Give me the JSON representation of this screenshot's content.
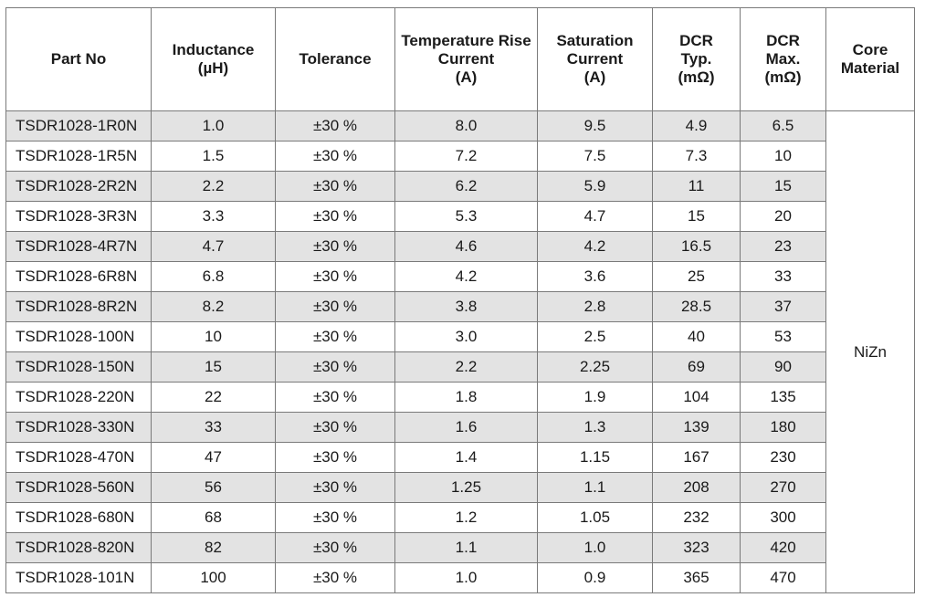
{
  "table": {
    "headers": [
      {
        "key": "part_no",
        "lines": [
          "Part No"
        ]
      },
      {
        "key": "inductance",
        "lines": [
          "Inductance",
          "(µH)"
        ]
      },
      {
        "key": "tolerance",
        "lines": [
          "Tolerance"
        ]
      },
      {
        "key": "temp_rise_current",
        "lines": [
          "Temperature Rise",
          "Current",
          "(A)"
        ]
      },
      {
        "key": "saturation_current",
        "lines": [
          "Saturation",
          "Current",
          "(A)"
        ]
      },
      {
        "key": "dcr_typ",
        "lines": [
          "DCR",
          "Typ.",
          "(mΩ)"
        ]
      },
      {
        "key": "dcr_max",
        "lines": [
          "DCR",
          "Max.",
          "(mΩ)"
        ]
      },
      {
        "key": "core_material",
        "lines": [
          "Core",
          "Material"
        ]
      }
    ],
    "core_material_value": "NiZn",
    "rows": [
      {
        "part_no": "TSDR1028-1R0N",
        "inductance": "1.0",
        "tolerance": "±30 %",
        "temp_rise_current": "8.0",
        "saturation_current": "9.5",
        "dcr_typ": "4.9",
        "dcr_max": "6.5"
      },
      {
        "part_no": "TSDR1028-1R5N",
        "inductance": "1.5",
        "tolerance": "±30 %",
        "temp_rise_current": "7.2",
        "saturation_current": "7.5",
        "dcr_typ": "7.3",
        "dcr_max": "10"
      },
      {
        "part_no": "TSDR1028-2R2N",
        "inductance": "2.2",
        "tolerance": "±30 %",
        "temp_rise_current": "6.2",
        "saturation_current": "5.9",
        "dcr_typ": "11",
        "dcr_max": "15"
      },
      {
        "part_no": "TSDR1028-3R3N",
        "inductance": "3.3",
        "tolerance": "±30 %",
        "temp_rise_current": "5.3",
        "saturation_current": "4.7",
        "dcr_typ": "15",
        "dcr_max": "20"
      },
      {
        "part_no": "TSDR1028-4R7N",
        "inductance": "4.7",
        "tolerance": "±30 %",
        "temp_rise_current": "4.6",
        "saturation_current": "4.2",
        "dcr_typ": "16.5",
        "dcr_max": "23"
      },
      {
        "part_no": "TSDR1028-6R8N",
        "inductance": "6.8",
        "tolerance": "±30 %",
        "temp_rise_current": "4.2",
        "saturation_current": "3.6",
        "dcr_typ": "25",
        "dcr_max": "33"
      },
      {
        "part_no": "TSDR1028-8R2N",
        "inductance": "8.2",
        "tolerance": "±30 %",
        "temp_rise_current": "3.8",
        "saturation_current": "2.8",
        "dcr_typ": "28.5",
        "dcr_max": "37"
      },
      {
        "part_no": "TSDR1028-100N",
        "inductance": "10",
        "tolerance": "±30 %",
        "temp_rise_current": "3.0",
        "saturation_current": "2.5",
        "dcr_typ": "40",
        "dcr_max": "53"
      },
      {
        "part_no": "TSDR1028-150N",
        "inductance": "15",
        "tolerance": "±30 %",
        "temp_rise_current": "2.2",
        "saturation_current": "2.25",
        "dcr_typ": "69",
        "dcr_max": "90"
      },
      {
        "part_no": "TSDR1028-220N",
        "inductance": "22",
        "tolerance": "±30 %",
        "temp_rise_current": "1.8",
        "saturation_current": "1.9",
        "dcr_typ": "104",
        "dcr_max": "135"
      },
      {
        "part_no": "TSDR1028-330N",
        "inductance": "33",
        "tolerance": "±30 %",
        "temp_rise_current": "1.6",
        "saturation_current": "1.3",
        "dcr_typ": "139",
        "dcr_max": "180"
      },
      {
        "part_no": "TSDR1028-470N",
        "inductance": "47",
        "tolerance": "±30 %",
        "temp_rise_current": "1.4",
        "saturation_current": "1.15",
        "dcr_typ": "167",
        "dcr_max": "230"
      },
      {
        "part_no": "TSDR1028-560N",
        "inductance": "56",
        "tolerance": "±30 %",
        "temp_rise_current": "1.25",
        "saturation_current": "1.1",
        "dcr_typ": "208",
        "dcr_max": "270"
      },
      {
        "part_no": "TSDR1028-680N",
        "inductance": "68",
        "tolerance": "±30 %",
        "temp_rise_current": "1.2",
        "saturation_current": "1.05",
        "dcr_typ": "232",
        "dcr_max": "300"
      },
      {
        "part_no": "TSDR1028-820N",
        "inductance": "82",
        "tolerance": "±30 %",
        "temp_rise_current": "1.1",
        "saturation_current": "1.0",
        "dcr_typ": "323",
        "dcr_max": "420"
      },
      {
        "part_no": "TSDR1028-101N",
        "inductance": "100",
        "tolerance": "±30 %",
        "temp_rise_current": "1.0",
        "saturation_current": "0.9",
        "dcr_typ": "365",
        "dcr_max": "470"
      }
    ]
  },
  "colors": {
    "shaded_row": "#e3e3e3",
    "border": "#7a7a7a"
  }
}
